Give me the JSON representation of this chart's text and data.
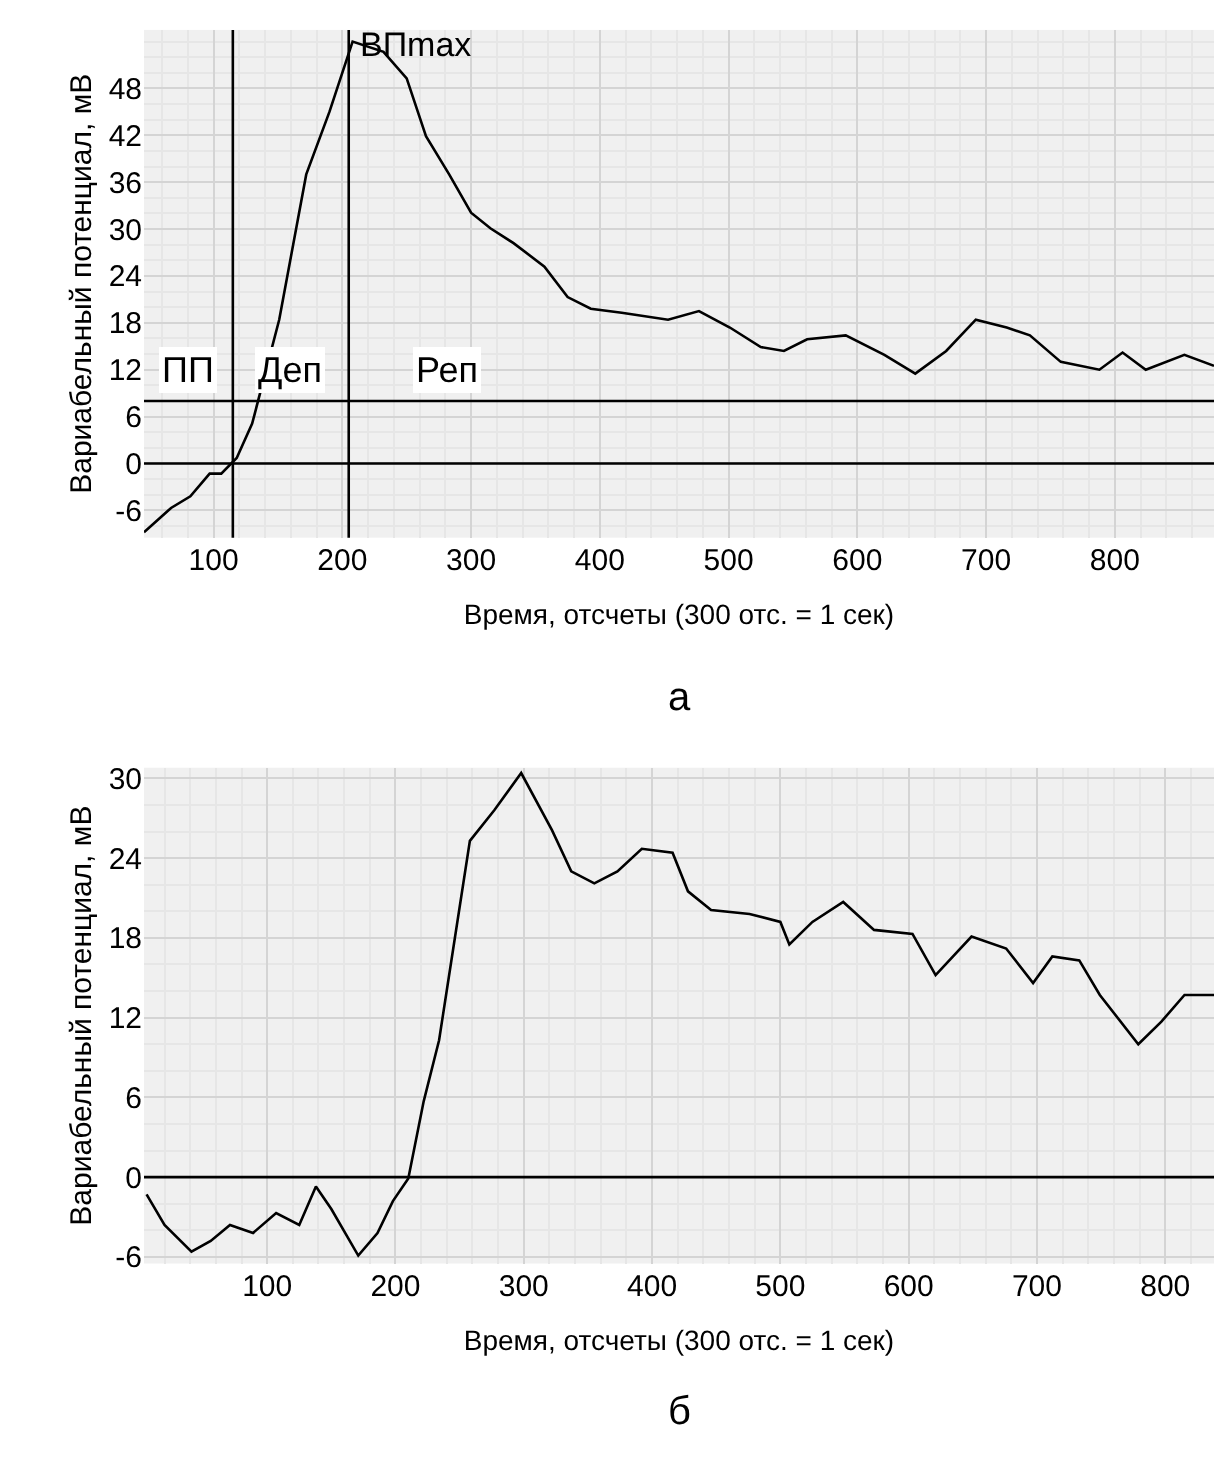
{
  "chart_data": [
    {
      "type": "line",
      "xlabel": "Время, отсчеты (300 отс. = 1 сек)",
      "ylabel": "Вариабельный потенциал, мВ",
      "series": [
        {
          "color": "#000000",
          "x": [
            46,
            67,
            82,
            97,
            106,
            118,
            130,
            151,
            172,
            190,
            208,
            232,
            250,
            265,
            283,
            300,
            315,
            333,
            357,
            375,
            393,
            417,
            453,
            477,
            501,
            525,
            543,
            561,
            591,
            621,
            645,
            669,
            692,
            716,
            734,
            758,
            788,
            806,
            824,
            854,
            877
          ],
          "values": [
            -8.8,
            -5.7,
            -4.2,
            -1.3,
            -1.3,
            0.7,
            5.1,
            18.4,
            37,
            45,
            54,
            52.7,
            49.3,
            41.9,
            37,
            32.1,
            30.1,
            28.2,
            25.2,
            21.3,
            19.8,
            19.3,
            18.4,
            19.5,
            17.4,
            14.9,
            14.4,
            15.9,
            16.4,
            13.9,
            11.5,
            14.4,
            18.4,
            17.4,
            16.4,
            13,
            12,
            14.2,
            12,
            13.9,
            12.5
          ]
        }
      ],
      "xlim": [
        46,
        877
      ],
      "xticks": [
        100,
        200,
        300,
        400,
        500,
        600,
        700,
        800
      ],
      "ylim": [
        -9.5,
        55.5
      ],
      "yticks": [
        -6,
        0,
        6,
        12,
        18,
        24,
        30,
        36,
        42,
        48
      ],
      "grid": true,
      "marker": "none",
      "line_style": "solid",
      "ref_lines": [
        {
          "axis": "y",
          "value": 0,
          "color": "#000000"
        },
        {
          "axis": "y",
          "value": 8,
          "color": "#000000"
        },
        {
          "axis": "x",
          "value": 115,
          "color": "#000000"
        },
        {
          "axis": "x",
          "value": 205,
          "color": "#000000",
          "label": "ВПmax"
        }
      ],
      "annotations": [
        {
          "text": "ПП",
          "x": 80,
          "y": 12
        },
        {
          "text": "Деп",
          "x": 160,
          "y": 12
        },
        {
          "text": "Реп",
          "x": 282,
          "y": 12
        },
        "а"
      ]
    },
    {
      "type": "line",
      "xlabel": "Время, отсчеты (300 отс. = 1 сек)",
      "ylabel": "Вариабельный потенциал, мВ",
      "series": [
        {
          "color": "#000000",
          "x": [
            6,
            20,
            41,
            56,
            71,
            89,
            107,
            125,
            138,
            150,
            171,
            186,
            198,
            210,
            222,
            234,
            246,
            258,
            277,
            298,
            322,
            337,
            355,
            373,
            392,
            416,
            428,
            446,
            476,
            500,
            507,
            525,
            549,
            573,
            603,
            621,
            649,
            676,
            697,
            712,
            733,
            749,
            779,
            797,
            815,
            838
          ],
          "values": [
            -1.3,
            -3.6,
            -5.6,
            -4.8,
            -3.6,
            -4.2,
            -2.7,
            -3.6,
            -0.7,
            -2.4,
            -5.9,
            -4.2,
            -1.8,
            -0.1,
            5.7,
            10.3,
            17.8,
            25.3,
            27.6,
            30.4,
            26.1,
            23,
            22.1,
            23,
            24.7,
            24.4,
            21.5,
            20.1,
            19.8,
            19.2,
            17.5,
            19.2,
            20.7,
            18.6,
            18.3,
            15.2,
            18.1,
            17.2,
            14.6,
            16.6,
            16.3,
            13.7,
            10,
            11.7,
            13.7,
            13.7
          ]
        }
      ],
      "xlim": [
        4,
        838
      ],
      "xticks": [
        100,
        200,
        300,
        400,
        500,
        600,
        700,
        800
      ],
      "ylim": [
        -6.5,
        30.8
      ],
      "yticks": [
        -6,
        0,
        6,
        12,
        18,
        24,
        30
      ],
      "grid": true,
      "marker": "none",
      "line_style": "solid",
      "ref_lines": [
        {
          "axis": "y",
          "value": 0,
          "color": "#000000"
        }
      ],
      "annotations": [
        "б"
      ]
    }
  ]
}
